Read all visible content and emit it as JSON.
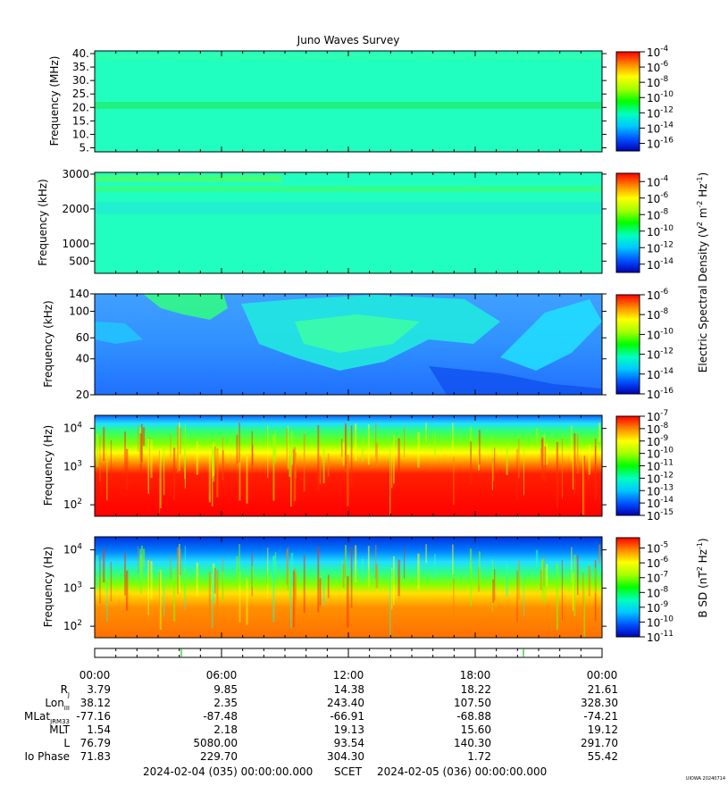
{
  "title": "Juno Waves Survey",
  "chart_data": [
    {
      "type": "heatmap",
      "ylabel": "Frequency (MHz)",
      "yscale": "linear",
      "ylim": [
        3.5,
        41
      ],
      "yticks": [
        {
          "v": 5,
          "label": "5."
        },
        {
          "v": 10,
          "label": "10."
        },
        {
          "v": 15,
          "label": "15."
        },
        {
          "v": 20,
          "label": "20."
        },
        {
          "v": 25,
          "label": "25."
        },
        {
          "v": 30,
          "label": "30."
        },
        {
          "v": 35,
          "label": "35."
        },
        {
          "v": 40,
          "label": "40."
        }
      ],
      "colorbar": {
        "min_exp": -17,
        "max_exp": -4,
        "labels": [
          -4,
          -6,
          -8,
          -10,
          -12,
          -14,
          -16
        ]
      }
    },
    {
      "type": "heatmap",
      "ylabel": "Frequency (kHz)",
      "yscale": "linear",
      "ylim": [
        150,
        3050
      ],
      "yticks": [
        {
          "v": 500,
          "label": "500"
        },
        {
          "v": 1000,
          "label": "1000"
        },
        {
          "v": 2000,
          "label": "2000"
        },
        {
          "v": 3000,
          "label": "3000"
        }
      ],
      "colorbar": {
        "min_exp": -15,
        "max_exp": -3,
        "labels": [
          -4,
          -6,
          -8,
          -10,
          -12,
          -14
        ]
      }
    },
    {
      "type": "heatmap",
      "ylabel": "Frequency (kHz)",
      "yscale": "log",
      "ylim": [
        20,
        140
      ],
      "yticks": [
        {
          "v": 20,
          "label": "20"
        },
        {
          "v": 40,
          "label": "40"
        },
        {
          "v": 60,
          "label": "60"
        },
        {
          "v": 100,
          "label": "100"
        },
        {
          "v": 140,
          "label": "140"
        }
      ],
      "colorbar": {
        "min_exp": -16,
        "max_exp": -6,
        "labels": [
          -6,
          -8,
          -10,
          -12,
          -14,
          -16
        ]
      }
    },
    {
      "type": "heatmap",
      "ylabel": "Frequency (Hz)",
      "yscale": "log",
      "ylim": [
        50,
        22000
      ],
      "yticks": [
        {
          "v": 100,
          "label": "10",
          "sup": "2"
        },
        {
          "v": 1000,
          "label": "10",
          "sup": "3"
        },
        {
          "v": 10000,
          "label": "10",
          "sup": "4"
        }
      ],
      "colorbar": {
        "min_exp": -15,
        "max_exp": -7,
        "labels": [
          -7,
          -8,
          -9,
          -10,
          -11,
          -12,
          -13,
          -14,
          -15
        ]
      }
    },
    {
      "type": "heatmap",
      "ylabel": "Frequency (Hz)",
      "yscale": "log",
      "ylim": [
        50,
        22000
      ],
      "yticks": [
        {
          "v": 100,
          "label": "10",
          "sup": "2"
        },
        {
          "v": 1000,
          "label": "10",
          "sup": "3"
        },
        {
          "v": 10000,
          "label": "10",
          "sup": "4"
        }
      ],
      "colorbar": {
        "min_exp": -11,
        "max_exp": -4.3,
        "labels": [
          -5,
          -6,
          -7,
          -8,
          -9,
          -10,
          -11
        ]
      }
    }
  ],
  "colorbar_label_e": "Electric Spectral Density (V",
  "colorbar_label_e_sup1": "2",
  "colorbar_label_e_mid": " m",
  "colorbar_label_e_sup2": "-2",
  "colorbar_label_e_mid2": " Hz",
  "colorbar_label_e_sup3": "-1",
  "colorbar_label_e_end": ")",
  "colorbar_label_b": "B SD (nT",
  "colorbar_label_b_sup1": "2",
  "colorbar_label_b_mid": " Hz",
  "colorbar_label_b_sup2": "-1",
  "colorbar_label_b_end": ")",
  "cb_base": "10",
  "ephemeris": {
    "time_labels": [
      "00:00",
      "06:00",
      "12:00",
      "18:00",
      "00:00"
    ],
    "rows": [
      {
        "label": "R",
        "sub": "J",
        "values": [
          "3.79",
          "9.85",
          "14.38",
          "18.22",
          "21.61"
        ]
      },
      {
        "label": "Lon",
        "sub": "III",
        "values": [
          "38.12",
          "2.35",
          "243.40",
          "107.50",
          "328.30"
        ]
      },
      {
        "label": "MLat",
        "sub": "JRM33",
        "values": [
          "-77.16",
          "-87.48",
          "-66.91",
          "-68.88",
          "-74.21"
        ]
      },
      {
        "label": "MLT",
        "sub": "",
        "values": [
          "1.54",
          "2.18",
          "19.13",
          "15.60",
          "19.12"
        ]
      },
      {
        "label": "L",
        "sub": "",
        "values": [
          "76.79",
          "5080.00",
          "93.54",
          "140.30",
          "291.70"
        ]
      },
      {
        "label": "Io Phase",
        "sub": "",
        "values": [
          "71.83",
          "229.70",
          "304.30",
          "1.72",
          "55.42"
        ]
      }
    ]
  },
  "footer": {
    "start": "2024-02-04 (035) 00:00:00.000",
    "scet": "SCET",
    "end": "2024-02-05 (036) 00:00:00.000"
  },
  "stamp": "UIOWA 20240714"
}
